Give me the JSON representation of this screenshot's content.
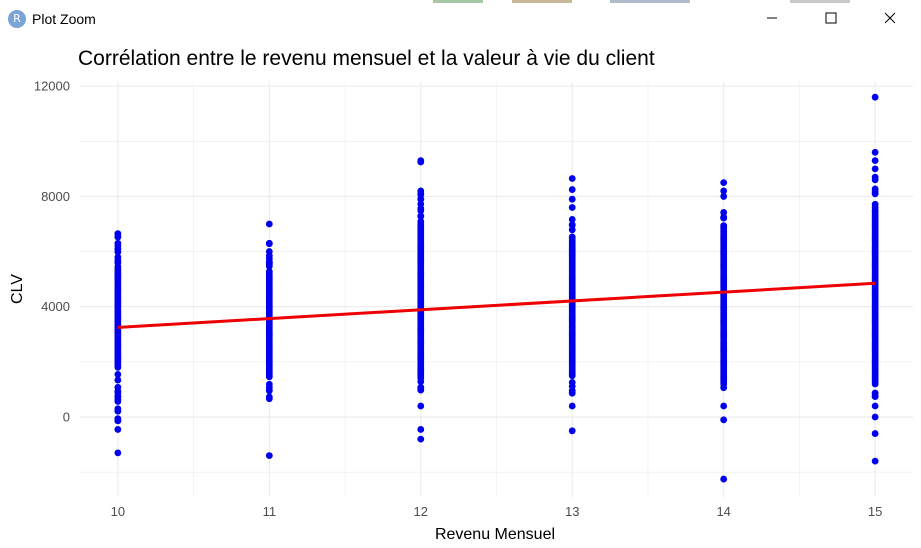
{
  "window": {
    "title": "Plot Zoom",
    "icon_letter": "R",
    "icon": "r-logo-icon",
    "controls": [
      "minimize-icon",
      "maximize-icon",
      "close-icon"
    ]
  },
  "colors": {
    "points": "#0000ee",
    "trend_line": "#ee0000",
    "grid": "#ebebeb",
    "text": "#000000"
  },
  "chart_data": {
    "type": "scatter",
    "title": "Corrélation entre le revenu mensuel et la valeur à vie du client",
    "xlabel": "Revenu Mensuel",
    "ylabel": "CLV",
    "x_ticks": [
      10,
      11,
      12,
      13,
      14,
      15
    ],
    "y_ticks": [
      0,
      4000,
      8000,
      12000
    ],
    "xlim": [
      9.75,
      15.25
    ],
    "ylim": [
      -2900,
      12150
    ],
    "grid": true,
    "legend": "none",
    "point_groups": [
      {
        "x": 10,
        "y_min": -300,
        "y_max": 6600,
        "dense": [
          1800,
          5400
        ],
        "outliers": [
          -1300,
          -450,
          6650,
          6300,
          6100,
          5800
        ]
      },
      {
        "x": 11,
        "y_min": 550,
        "y_max": 6300,
        "dense": [
          1500,
          5300
        ],
        "outliers": [
          -1400,
          7000,
          6300,
          6000,
          5600
        ]
      },
      {
        "x": 12,
        "y_min": 900,
        "y_max": 8200,
        "dense": [
          1400,
          7000
        ],
        "outliers": [
          -800,
          -450,
          400,
          9300,
          9250,
          8200,
          7900
        ]
      },
      {
        "x": 13,
        "y_min": 800,
        "y_max": 7200,
        "dense": [
          1500,
          6500
        ],
        "outliers": [
          -500,
          400,
          8650,
          8250,
          7900,
          7600
        ]
      },
      {
        "x": 14,
        "y_min": 1000,
        "y_max": 7500,
        "dense": [
          1200,
          7000
        ],
        "outliers": [
          -2250,
          -100,
          400,
          8500,
          8200,
          8000
        ]
      },
      {
        "x": 15,
        "y_min": 600,
        "y_max": 8300,
        "dense": [
          1200,
          7500
        ],
        "outliers": [
          -1600,
          -600,
          0,
          400,
          11600,
          9600,
          9300,
          9000,
          8700,
          8600
        ]
      }
    ],
    "trend_line": {
      "x": [
        10,
        15
      ],
      "y": [
        3250,
        4850
      ]
    }
  }
}
